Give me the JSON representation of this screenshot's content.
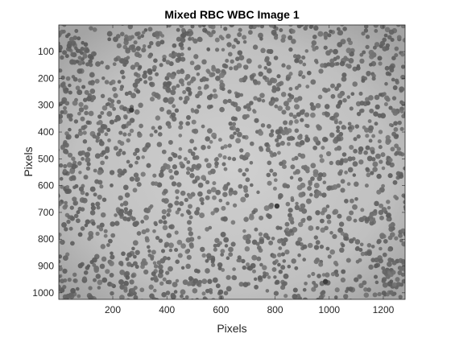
{
  "figure": {
    "title": "Mixed RBC WBC Image 1",
    "xlabel": "Pixels",
    "ylabel": "Pixels",
    "image_width": 1280,
    "image_height": 1024,
    "x_ticks": [
      200,
      400,
      600,
      800,
      1000,
      1200
    ],
    "y_ticks": [
      100,
      200,
      300,
      400,
      500,
      600,
      700,
      800,
      900,
      1000
    ],
    "colormap": "gray",
    "colors": {
      "background": "#ffffff",
      "axes_line": "#262626",
      "field_light": "#c2c2c2",
      "cell_dark": "#6e6e6e"
    }
  }
}
